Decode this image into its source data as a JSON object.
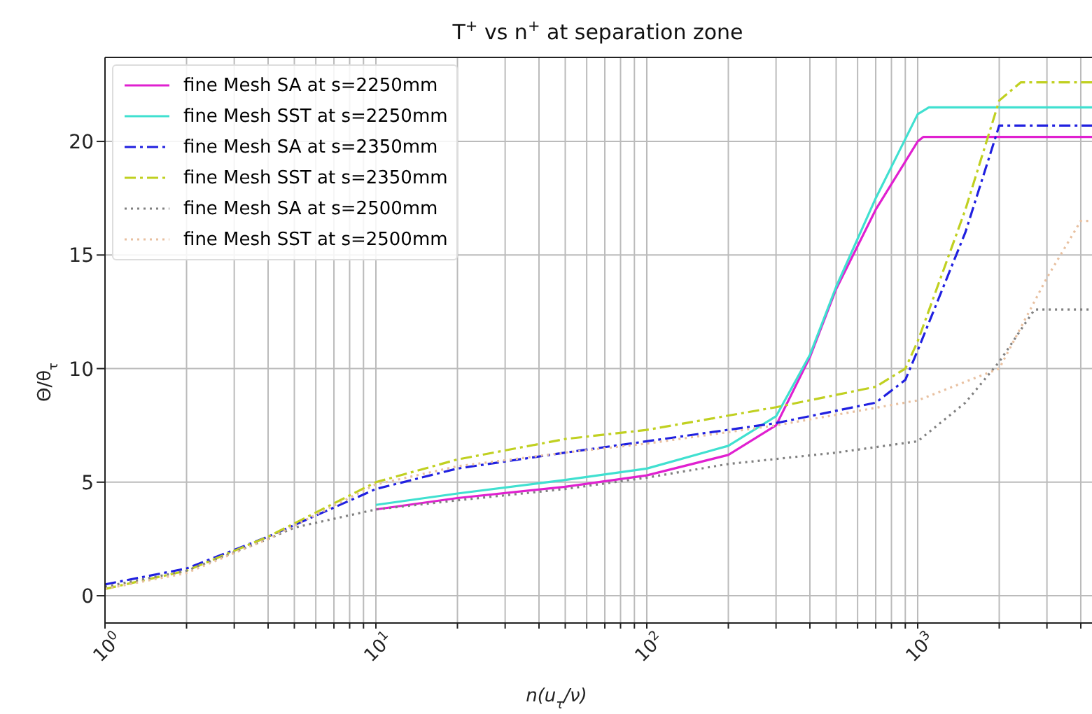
{
  "chart_data": {
    "type": "line",
    "title": "T$^{+}$ vs n$^{+}$ at separation zone",
    "xlabel": "n(u$_{τ}$/ν)",
    "ylabel": "Θ/θ$_{τ}$",
    "log": "x",
    "grid": true,
    "legend": "top left",
    "xlim": [
      1,
      4400
    ],
    "ylim": [
      -1.2,
      23.7
    ],
    "xticks": [
      {
        "value": 1,
        "label": "10$^{0}$"
      },
      {
        "value": 2,
        "label": null
      },
      {
        "value": 3,
        "label": null
      },
      {
        "value": 4,
        "label": null
      },
      {
        "value": 5,
        "label": null
      },
      {
        "value": 6,
        "label": null
      },
      {
        "value": 7,
        "label": null
      },
      {
        "value": 8,
        "label": null
      },
      {
        "value": 9,
        "label": null
      },
      {
        "value": 10,
        "label": "10$^{1}$"
      },
      {
        "value": 20,
        "label": null
      },
      {
        "value": 30,
        "label": null
      },
      {
        "value": 40,
        "label": null
      },
      {
        "value": 50,
        "label": null
      },
      {
        "value": 60,
        "label": null
      },
      {
        "value": 70,
        "label": null
      },
      {
        "value": 80,
        "label": null
      },
      {
        "value": 90,
        "label": null
      },
      {
        "value": 100,
        "label": "10$^{2}$"
      },
      {
        "value": 200,
        "label": null
      },
      {
        "value": 300,
        "label": null
      },
      {
        "value": 400,
        "label": null
      },
      {
        "value": 500,
        "label": null
      },
      {
        "value": 600,
        "label": null
      },
      {
        "value": 700,
        "label": null
      },
      {
        "value": 800,
        "label": null
      },
      {
        "value": 900,
        "label": null
      },
      {
        "value": 1000,
        "label": "10$^{3}$"
      },
      {
        "value": 2000,
        "label": null
      },
      {
        "value": 3000,
        "label": null
      },
      {
        "value": 4000,
        "label": null
      }
    ],
    "yticks": [
      0,
      5,
      10,
      15,
      20
    ],
    "series": [
      {
        "name": "fine Mesh SA at s=2250mm",
        "color": "#e020d0",
        "line_style": "solid",
        "x": [
          10,
          10,
          20,
          50,
          100,
          200,
          300,
          400,
          500,
          700,
          1000,
          1050,
          4400
        ],
        "values": [
          3.8,
          3.8,
          4.3,
          4.8,
          5.3,
          6.2,
          7.5,
          10.5,
          13.5,
          17,
          20,
          20.2,
          20.2
        ]
      },
      {
        "name": "fine Mesh SST at s=2250mm",
        "color": "#40e0d0",
        "line_style": "solid",
        "x": [
          10,
          10,
          20,
          50,
          100,
          200,
          300,
          400,
          500,
          700,
          1000,
          1100,
          4400
        ],
        "values": [
          4.0,
          4.0,
          4.5,
          5.1,
          5.6,
          6.6,
          7.9,
          10.6,
          13.6,
          17.5,
          21.2,
          21.5,
          21.5
        ]
      },
      {
        "name": "fine Mesh SA at s=2350mm",
        "color": "#2020e0",
        "line_style": "dashdot",
        "x": [
          1,
          2,
          4,
          10,
          20,
          50,
          100,
          300,
          700,
          900,
          1000,
          1500,
          2000,
          4400
        ],
        "values": [
          0.5,
          1.2,
          2.6,
          4.7,
          5.6,
          6.3,
          6.8,
          7.6,
          8.5,
          9.5,
          10.8,
          16,
          20.7,
          20.7
        ]
      },
      {
        "name": "fine Mesh SST at s=2350mm",
        "color": "#c0d020",
        "line_style": "dashdot",
        "x": [
          1,
          2,
          4,
          10,
          20,
          50,
          100,
          300,
          700,
          900,
          1000,
          1500,
          2000,
          2400,
          4400
        ],
        "values": [
          0.3,
          1.1,
          2.6,
          5,
          6,
          6.9,
          7.3,
          8.3,
          9.2,
          10,
          11.2,
          17,
          21.8,
          22.6,
          22.6
        ]
      },
      {
        "name": "fine Mesh SA at s=2500mm",
        "color": "#808080",
        "line_style": "dotted",
        "x": [
          1,
          2,
          4,
          5,
          10,
          20,
          50,
          100,
          200,
          500,
          1000,
          1500,
          2000,
          2700,
          4400
        ],
        "values": [
          0.4,
          1.1,
          2.5,
          3,
          3.8,
          4.2,
          4.7,
          5.2,
          5.8,
          6.3,
          6.8,
          8.5,
          10.3,
          12.6,
          12.6
        ]
      },
      {
        "name": "fine Mesh SST at s=2500mm",
        "color": "#e8c0a0",
        "line_style": "dotted",
        "x": [
          1,
          2,
          4,
          10,
          20,
          50,
          100,
          300,
          1000,
          2000,
          3000,
          4000,
          4400
        ],
        "values": [
          0.3,
          1,
          2.5,
          4.9,
          5.7,
          6.3,
          6.7,
          7.5,
          8.6,
          10,
          14,
          16.5,
          16.5
        ]
      }
    ]
  }
}
